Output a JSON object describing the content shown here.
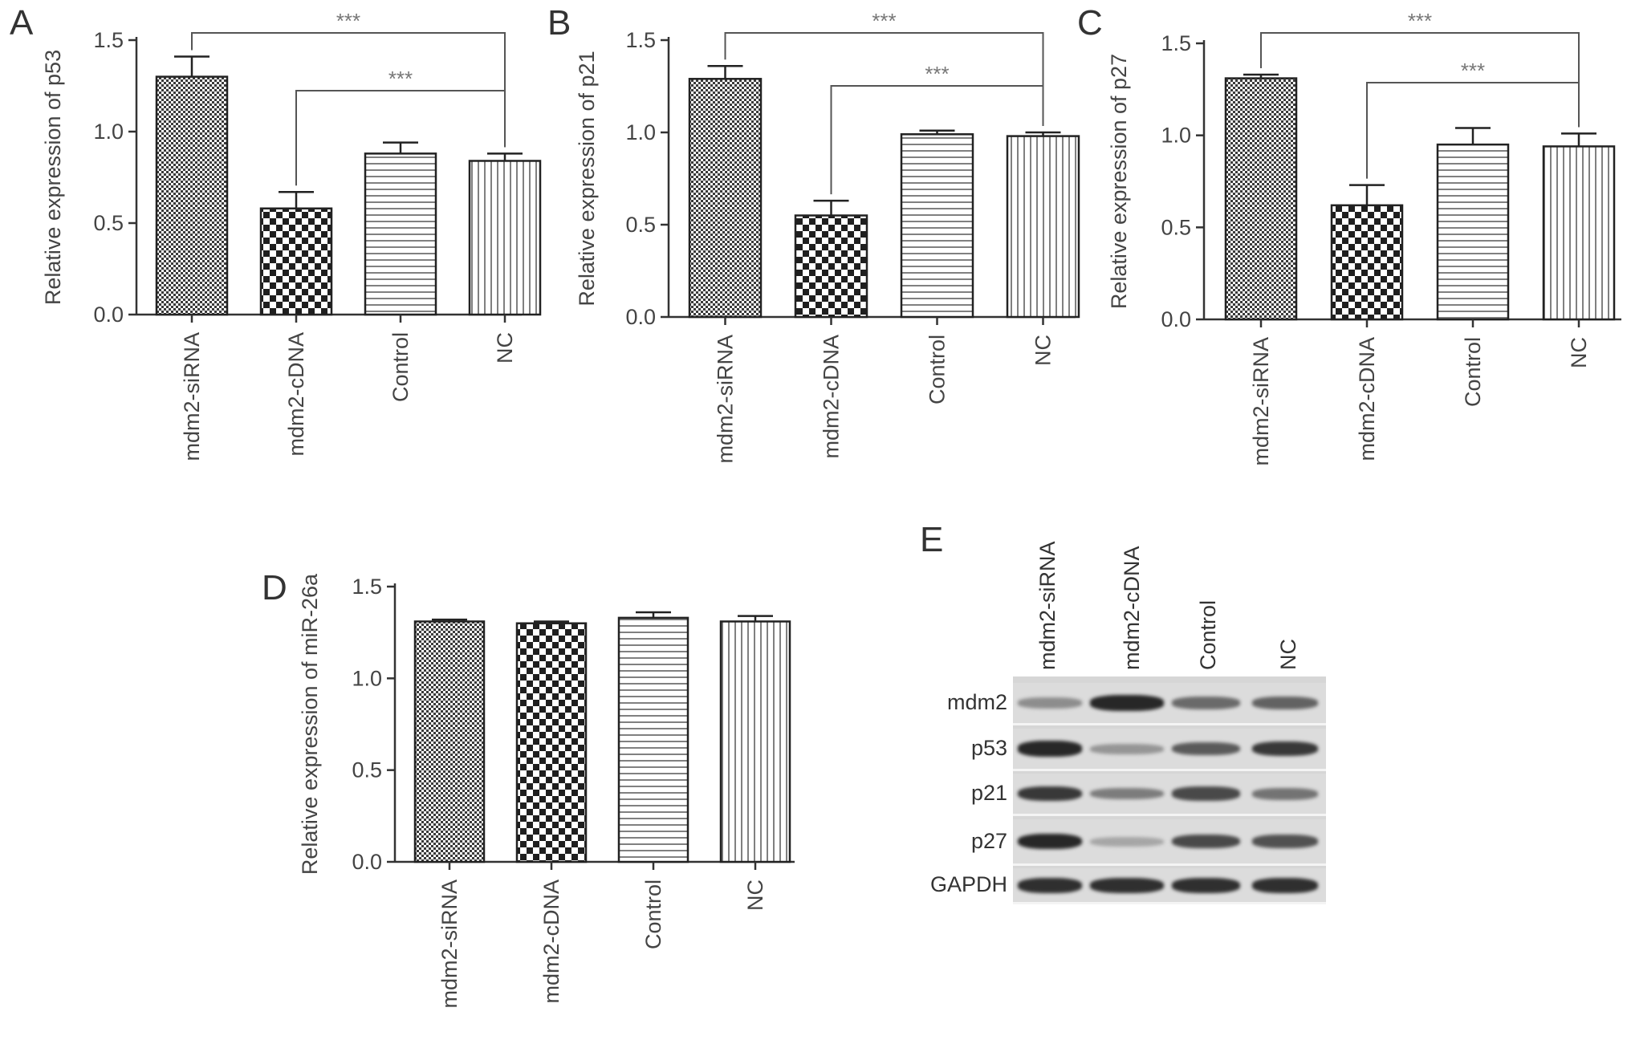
{
  "panels": [
    "A",
    "B",
    "C",
    "D",
    "E"
  ],
  "chart_data": [
    {
      "type": "bar",
      "panel": "A",
      "categories": [
        "mdm2-siRNA",
        "mdm2-cDNA",
        "Control",
        "NC"
      ],
      "values": [
        1.3,
        0.58,
        0.88,
        0.84
      ],
      "errors": [
        0.11,
        0.09,
        0.06,
        0.04
      ],
      "ylabel": "Relative expression of p53",
      "ylim": [
        0,
        1.5
      ],
      "yticks": [
        "0.0",
        "0.5",
        "1.0",
        "1.5"
      ],
      "annotations": [
        {
          "from": "mdm2-siRNA",
          "to": "NC",
          "label": "***"
        },
        {
          "from": "mdm2-cDNA",
          "to": "NC",
          "label": "***"
        }
      ]
    },
    {
      "type": "bar",
      "panel": "B",
      "categories": [
        "mdm2-siRNA",
        "mdm2-cDNA",
        "Control",
        "NC"
      ],
      "values": [
        1.29,
        0.55,
        0.99,
        0.98
      ],
      "errors": [
        0.07,
        0.08,
        0.02,
        0.02
      ],
      "ylabel": "Relative expression of p21",
      "ylim": [
        0,
        1.5
      ],
      "yticks": [
        "0.0",
        "0.5",
        "1.0",
        "1.5"
      ],
      "annotations": [
        {
          "from": "mdm2-siRNA",
          "to": "NC",
          "label": "***"
        },
        {
          "from": "mdm2-cDNA",
          "to": "NC",
          "label": "***"
        }
      ]
    },
    {
      "type": "bar",
      "panel": "C",
      "categories": [
        "mdm2-siRNA",
        "mdm2-cDNA",
        "Control",
        "NC"
      ],
      "values": [
        1.31,
        0.62,
        0.95,
        0.94
      ],
      "errors": [
        0.02,
        0.11,
        0.09,
        0.07
      ],
      "ylabel": "Relative expression of p27",
      "ylim": [
        0,
        1.5
      ],
      "yticks": [
        "0.0",
        "0.5",
        "1.0",
        "1.5"
      ],
      "annotations": [
        {
          "from": "mdm2-siRNA",
          "to": "NC",
          "label": "***"
        },
        {
          "from": "mdm2-cDNA",
          "to": "NC",
          "label": "***"
        }
      ]
    },
    {
      "type": "bar",
      "panel": "D",
      "categories": [
        "mdm2-siRNA",
        "mdm2-cDNA",
        "Control",
        "NC"
      ],
      "values": [
        1.31,
        1.3,
        1.33,
        1.31
      ],
      "errors": [
        0.01,
        0.01,
        0.03,
        0.03
      ],
      "ylabel": "Relative expression of miR-26a",
      "ylim": [
        0,
        1.5
      ],
      "yticks": [
        "0.0",
        "0.5",
        "1.0",
        "1.5"
      ],
      "annotations": []
    }
  ],
  "blot": {
    "lanes": [
      "mdm2-siRNA",
      "mdm2-cDNA",
      "Control",
      "NC"
    ],
    "rows": [
      {
        "label": "mdm2",
        "intensities": [
          0.35,
          0.95,
          0.55,
          0.6
        ]
      },
      {
        "label": "p53",
        "intensities": [
          0.95,
          0.3,
          0.65,
          0.85
        ]
      },
      {
        "label": "p21",
        "intensities": [
          0.85,
          0.45,
          0.75,
          0.5
        ]
      },
      {
        "label": "p27",
        "intensities": [
          0.95,
          0.2,
          0.75,
          0.7
        ]
      },
      {
        "label": "GAPDH",
        "intensities": [
          0.9,
          0.9,
          0.9,
          0.9
        ]
      }
    ]
  }
}
